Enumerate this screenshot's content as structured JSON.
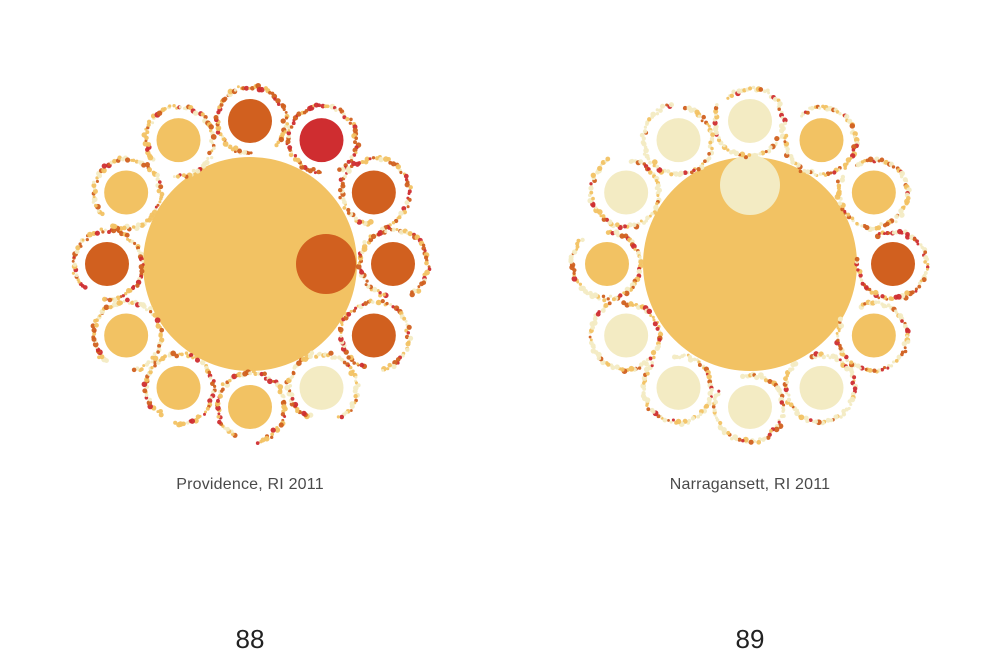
{
  "palette": {
    "level_1": "#f3ebc3",
    "level_2": "#f2c263",
    "level_3": "#d1601f",
    "level_4": "#cf2d30"
  },
  "pages": [
    {
      "caption": "Providence, RI 2011",
      "page_number": "88",
      "center_level": 2,
      "center_inner_level": 3,
      "ring_levels": [
        3,
        4,
        3,
        3,
        3,
        1,
        2,
        2,
        2,
        3,
        2,
        2
      ],
      "ring_dot_mix": [
        [
          0.15,
          0.35,
          0.35,
          0.15
        ],
        [
          0.1,
          0.25,
          0.35,
          0.3
        ],
        [
          0.15,
          0.3,
          0.35,
          0.2
        ],
        [
          0.15,
          0.3,
          0.35,
          0.2
        ],
        [
          0.15,
          0.3,
          0.35,
          0.2
        ],
        [
          0.45,
          0.3,
          0.15,
          0.1
        ],
        [
          0.3,
          0.4,
          0.2,
          0.1
        ],
        [
          0.3,
          0.4,
          0.2,
          0.1
        ],
        [
          0.3,
          0.4,
          0.2,
          0.1
        ],
        [
          0.15,
          0.3,
          0.35,
          0.2
        ],
        [
          0.3,
          0.4,
          0.2,
          0.1
        ],
        [
          0.3,
          0.4,
          0.2,
          0.1
        ]
      ]
    },
    {
      "caption": "Narragansett, RI 2011",
      "page_number": "89",
      "center_level": 2,
      "center_inner_level": 1,
      "ring_levels": [
        1,
        2,
        2,
        3,
        2,
        1,
        1,
        1,
        1,
        2,
        1,
        1
      ],
      "ring_dot_mix": [
        [
          0.55,
          0.25,
          0.12,
          0.08
        ],
        [
          0.35,
          0.35,
          0.2,
          0.1
        ],
        [
          0.35,
          0.35,
          0.2,
          0.1
        ],
        [
          0.2,
          0.3,
          0.3,
          0.2
        ],
        [
          0.35,
          0.35,
          0.2,
          0.1
        ],
        [
          0.55,
          0.25,
          0.12,
          0.08
        ],
        [
          0.55,
          0.25,
          0.12,
          0.08
        ],
        [
          0.55,
          0.25,
          0.12,
          0.08
        ],
        [
          0.55,
          0.25,
          0.12,
          0.08
        ],
        [
          0.35,
          0.35,
          0.2,
          0.1
        ],
        [
          0.55,
          0.25,
          0.12,
          0.08
        ],
        [
          0.55,
          0.25,
          0.12,
          0.08
        ]
      ]
    }
  ]
}
